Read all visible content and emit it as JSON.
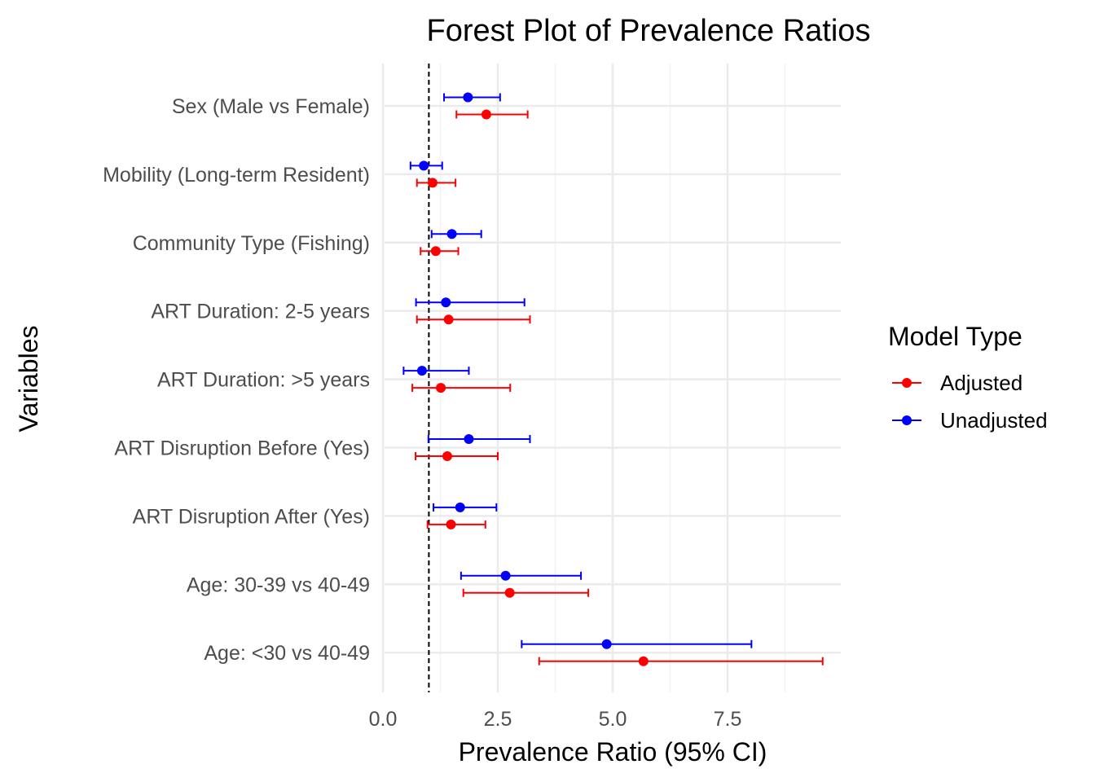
{
  "chart_data": {
    "type": "scatter",
    "subtype": "forest-plot",
    "title": "Forest Plot of Prevalence Ratios",
    "xlabel": "Prevalence Ratio (95% CI)",
    "ylabel": "Variables",
    "xlim": [
      0,
      9.9
    ],
    "xticks": [
      0.0,
      2.5,
      5.0,
      7.5
    ],
    "xtick_labels": [
      "0.0",
      "2.5",
      "5.0",
      "7.5"
    ],
    "reference_line": 1,
    "grid": true,
    "legend": {
      "title": "Model Type",
      "position": "right",
      "entries": [
        "Adjusted",
        "Unadjusted"
      ]
    },
    "categories": [
      "Sex (Male vs Female)",
      "Mobility (Long-term Resident)",
      "Community Type (Fishing)",
      "ART Duration: 2-5 years",
      "ART Duration: >5 years",
      "ART Disruption Before (Yes)",
      "ART Disruption After (Yes)",
      "Age: 30-39 vs 40-49",
      "Age: <30 vs 40-49"
    ],
    "series": [
      {
        "name": "Unadjusted",
        "color": "#0000ff",
        "estimates": [
          1.85,
          0.89,
          1.5,
          1.37,
          0.85,
          1.87,
          1.68,
          2.67,
          4.87
        ],
        "lower": [
          1.33,
          0.6,
          1.06,
          0.72,
          0.45,
          0.99,
          1.1,
          1.7,
          3.02
        ],
        "upper": [
          2.55,
          1.29,
          2.14,
          3.08,
          1.87,
          3.2,
          2.47,
          4.31,
          8.02
        ]
      },
      {
        "name": "Adjusted",
        "color": "#ff0000",
        "estimates": [
          2.25,
          1.08,
          1.15,
          1.43,
          1.26,
          1.4,
          1.48,
          2.76,
          5.67
        ],
        "lower": [
          1.6,
          0.74,
          0.82,
          0.74,
          0.64,
          0.71,
          0.97,
          1.75,
          3.4
        ],
        "upper": [
          3.15,
          1.58,
          1.64,
          3.2,
          2.77,
          2.5,
          2.23,
          4.47,
          9.57
        ]
      }
    ]
  }
}
